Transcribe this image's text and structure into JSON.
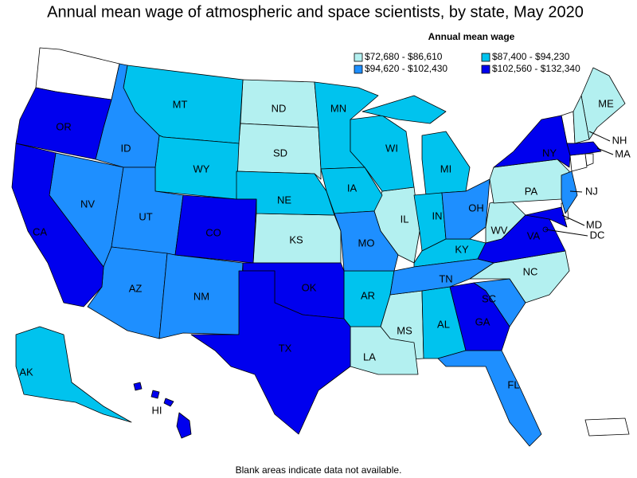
{
  "title": "Annual mean wage of atmospheric and space scientists, by state, May 2020",
  "legend": {
    "title": "Annual mean wage",
    "items": [
      {
        "label": "$72,680 - $86,610",
        "color": "#b3f0f0",
        "states": [
          "ND",
          "SD",
          "KS",
          "IL",
          "MS",
          "LA",
          "NC",
          "WV",
          "PA",
          "ME",
          "NH"
        ]
      },
      {
        "label": "$87,400 - $94,230",
        "color": "#00c3ee",
        "states": [
          "MT",
          "WY",
          "MN",
          "WI",
          "MI",
          "IA",
          "NE",
          "IN",
          "KY",
          "AR",
          "AL",
          "AK"
        ]
      },
      {
        "label": "$94,620 - $102,430",
        "color": "#1e8fff",
        "states": [
          "ID",
          "NV",
          "UT",
          "AZ",
          "NM",
          "MO",
          "OH",
          "TN",
          "SC",
          "FL",
          "NJ"
        ]
      },
      {
        "label": "$102,560 - $132,340",
        "color": "#0000ee",
        "states": [
          "OR",
          "CA",
          "CO",
          "OK",
          "TX",
          "GA",
          "VA",
          "NY",
          "MA",
          "MD",
          "DC",
          "HI"
        ]
      }
    ]
  },
  "footnote": "Blank areas indicate data not available."
}
